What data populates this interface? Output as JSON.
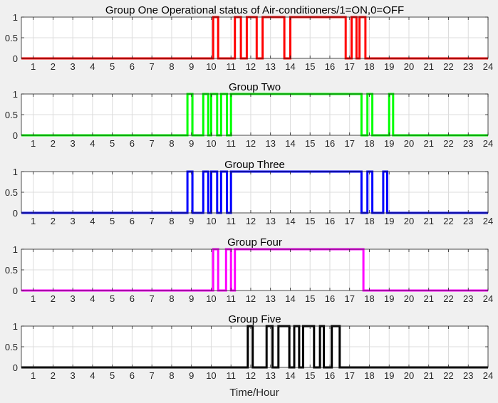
{
  "figure": {
    "xlabel": "Time/Hour"
  },
  "chart_data": [
    {
      "type": "line",
      "step": true,
      "title": "Group One Operational status of Air-conditioners/1=ON,0=OFF",
      "xlim": [
        0.4,
        24
      ],
      "ylim": [
        0,
        1
      ],
      "xticks": [
        1,
        2,
        3,
        4,
        5,
        6,
        7,
        8,
        9,
        10,
        11,
        12,
        13,
        14,
        15,
        16,
        17,
        18,
        19,
        20,
        21,
        22,
        23,
        24
      ],
      "yticks": [
        0,
        0.5,
        1
      ],
      "ytick_labels": [
        "0",
        "0.5",
        "1"
      ],
      "grid": true,
      "color": "#ff0000",
      "on_intervals": [
        [
          10.1,
          10.35
        ],
        [
          11.2,
          11.5
        ],
        [
          11.8,
          12.3
        ],
        [
          12.6,
          13.7
        ],
        [
          14.0,
          16.8
        ],
        [
          17.1,
          17.35
        ],
        [
          17.5,
          17.8
        ]
      ]
    },
    {
      "type": "line",
      "step": true,
      "title": "Group Two",
      "xlim": [
        0.4,
        24
      ],
      "ylim": [
        0,
        1
      ],
      "xticks": [
        1,
        2,
        3,
        4,
        5,
        6,
        7,
        8,
        9,
        10,
        11,
        12,
        13,
        14,
        15,
        16,
        17,
        18,
        19,
        20,
        21,
        22,
        23,
        24
      ],
      "yticks": [
        0,
        0.5,
        1
      ],
      "ytick_labels": [
        "0",
        "0.5",
        "1"
      ],
      "grid": true,
      "color": "#00ff00",
      "on_intervals": [
        [
          8.8,
          9.05
        ],
        [
          9.6,
          9.85
        ],
        [
          10.0,
          10.3
        ],
        [
          10.5,
          10.8
        ],
        [
          11.0,
          17.6
        ],
        [
          17.9,
          18.15
        ],
        [
          19.0,
          19.2
        ]
      ]
    },
    {
      "type": "line",
      "step": true,
      "title": "Group Three",
      "xlim": [
        0.4,
        24
      ],
      "ylim": [
        0,
        1
      ],
      "xticks": [
        1,
        2,
        3,
        4,
        5,
        6,
        7,
        8,
        9,
        10,
        11,
        12,
        13,
        14,
        15,
        16,
        17,
        18,
        19,
        20,
        21,
        22,
        23,
        24
      ],
      "yticks": [
        0,
        0.5,
        1
      ],
      "ytick_labels": [
        "0",
        "0.5",
        "1"
      ],
      "grid": true,
      "color": "#0000ff",
      "on_intervals": [
        [
          8.8,
          9.05
        ],
        [
          9.6,
          9.85
        ],
        [
          10.0,
          10.3
        ],
        [
          10.5,
          10.8
        ],
        [
          11.0,
          17.6
        ],
        [
          17.9,
          18.15
        ],
        [
          18.7,
          18.9
        ]
      ]
    },
    {
      "type": "line",
      "step": true,
      "title": "Group Four",
      "xlim": [
        0.4,
        24
      ],
      "ylim": [
        0,
        1
      ],
      "xticks": [
        1,
        2,
        3,
        4,
        5,
        6,
        7,
        8,
        9,
        10,
        11,
        12,
        13,
        14,
        15,
        16,
        17,
        18,
        19,
        20,
        21,
        22,
        23,
        24
      ],
      "yticks": [
        0,
        0.5,
        1
      ],
      "ytick_labels": [
        "0",
        "0.5",
        "1"
      ],
      "grid": true,
      "color": "#ff00ff",
      "on_intervals": [
        [
          10.1,
          10.35
        ],
        [
          10.75,
          11.0
        ],
        [
          11.2,
          17.7
        ]
      ]
    },
    {
      "type": "line",
      "step": true,
      "title": "Group Five",
      "xlim": [
        0.4,
        24
      ],
      "ylim": [
        0,
        1
      ],
      "xticks": [
        1,
        2,
        3,
        4,
        5,
        6,
        7,
        8,
        9,
        10,
        11,
        12,
        13,
        14,
        15,
        16,
        17,
        18,
        19,
        20,
        21,
        22,
        23,
        24
      ],
      "yticks": [
        0,
        0.5,
        1
      ],
      "ytick_labels": [
        "0",
        "0.5",
        "1"
      ],
      "grid": true,
      "color": "#000000",
      "on_intervals": [
        [
          11.85,
          12.1
        ],
        [
          12.8,
          13.1
        ],
        [
          13.4,
          13.95
        ],
        [
          14.2,
          14.45
        ],
        [
          14.65,
          15.2
        ],
        [
          15.5,
          15.7
        ],
        [
          16.1,
          16.5
        ]
      ]
    }
  ]
}
